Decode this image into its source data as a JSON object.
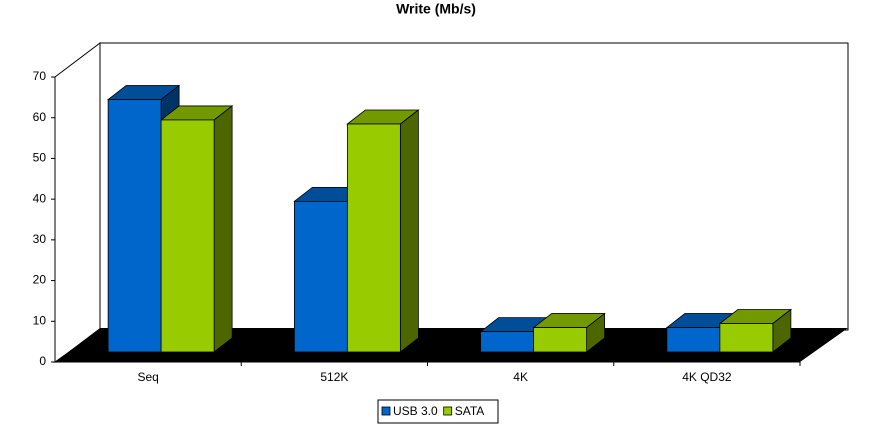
{
  "chart_data": {
    "type": "bar3d",
    "title": "Write (Mb/s)",
    "categories": [
      "Seq",
      "512K",
      "4K",
      "4K QD32"
    ],
    "series": [
      {
        "name": "USB 3.0",
        "color": "#0066cc",
        "values": [
          62,
          37,
          5,
          6
        ]
      },
      {
        "name": "SATA",
        "color": "#99cc00",
        "values": [
          57,
          56,
          6,
          7
        ]
      }
    ],
    "ylim": [
      0,
      70
    ],
    "yticks": [
      0,
      10,
      20,
      30,
      40,
      50,
      60,
      70
    ],
    "legend": "bottom"
  }
}
